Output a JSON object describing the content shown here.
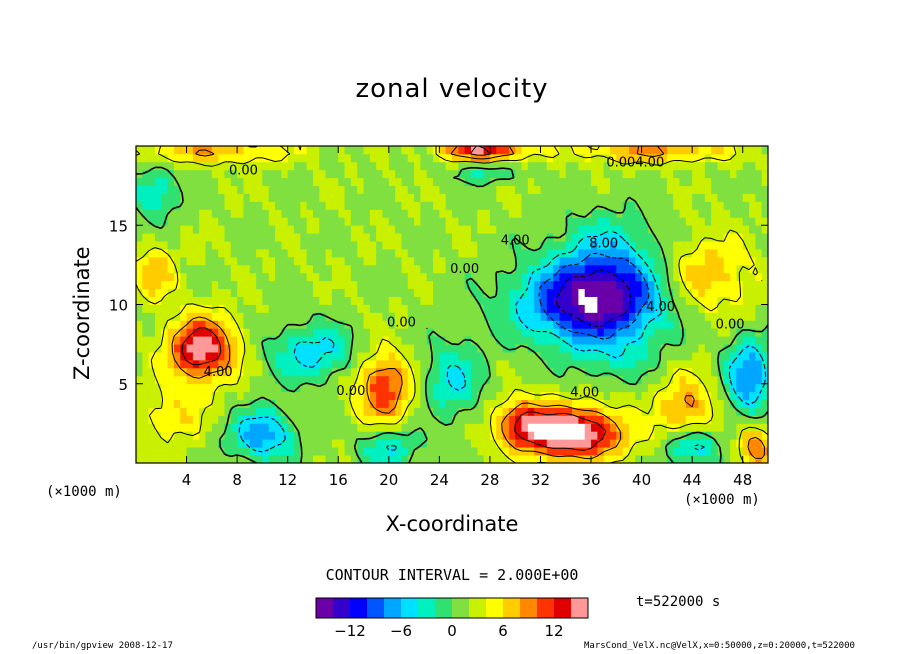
{
  "chart_data": {
    "type": "heatmap",
    "title": "zonal velocity",
    "xlabel": "X-coordinate",
    "ylabel": "Z-coordinate",
    "x_unit": "(×1000 m)",
    "z_unit": "(×1000 m)",
    "xlim": [
      0,
      50
    ],
    "ylim": [
      0,
      20
    ],
    "x_ticks": [
      4,
      8,
      12,
      16,
      20,
      24,
      28,
      32,
      36,
      40,
      44,
      48
    ],
    "y_ticks": [
      5,
      10,
      15
    ],
    "contour_interval_text": "CONTOUR INTERVAL = 2.000E+00",
    "colorbar": {
      "min": -16,
      "max": 16,
      "ticks": [
        -12,
        -6,
        0,
        6,
        12
      ]
    },
    "contour_labels": [
      {
        "text": "0.00",
        "x": 8.5,
        "z": 18.2
      },
      {
        "text": "0.004.00",
        "x": 39.5,
        "z": 18.7
      },
      {
        "text": "4.00",
        "x": 30.0,
        "z": 13.8
      },
      {
        "text": "8.00",
        "x": 37.0,
        "z": 13.6
      },
      {
        "text": "0.00",
        "x": 26.0,
        "z": 12.0
      },
      {
        "text": "0.00",
        "x": 21.0,
        "z": 8.6
      },
      {
        "text": "4.00",
        "x": 41.5,
        "z": 9.6
      },
      {
        "text": "0.00",
        "x": 47.0,
        "z": 8.5
      },
      {
        "text": "4.00",
        "x": 6.5,
        "z": 5.5
      },
      {
        "text": "0.00",
        "x": 17.0,
        "z": 4.3
      },
      {
        "text": "4.00",
        "x": 35.5,
        "z": 4.2
      }
    ],
    "features": [
      {
        "kind": "min",
        "x": 36.0,
        "z": 10.1,
        "value": -16,
        "sx": 5.6,
        "sz": 2.6
      },
      {
        "kind": "min",
        "x": 37.5,
        "z": 12.8,
        "value": -6,
        "sx": 4.0,
        "sz": 3.0
      },
      {
        "kind": "max",
        "x": 34.5,
        "z": 1.9,
        "value": 16,
        "sx": 4.0,
        "sz": 1.6
      },
      {
        "kind": "max",
        "x": 30.5,
        "z": 2.6,
        "value": 8,
        "sx": 2.0,
        "sz": 1.5
      },
      {
        "kind": "max",
        "x": 5.2,
        "z": 7.2,
        "value": 14,
        "sx": 2.6,
        "sz": 2.0
      },
      {
        "kind": "max",
        "x": 19.6,
        "z": 4.8,
        "value": 10,
        "sx": 2.2,
        "sz": 2.2
      },
      {
        "kind": "max",
        "x": 45.0,
        "z": 11.8,
        "value": 6,
        "sx": 3.6,
        "sz": 2.4
      },
      {
        "kind": "max",
        "x": 1.5,
        "z": 12.0,
        "value": 6,
        "sx": 1.6,
        "sz": 1.6
      },
      {
        "kind": "max",
        "x": 43.5,
        "z": 3.5,
        "value": 7,
        "sx": 2.2,
        "sz": 2.0
      },
      {
        "kind": "max",
        "x": 3.0,
        "z": 3.0,
        "value": 4,
        "sx": 2.6,
        "sz": 1.8
      },
      {
        "kind": "max",
        "x": 49.0,
        "z": 1.0,
        "value": 8,
        "sx": 1.4,
        "sz": 1.4
      },
      {
        "kind": "max",
        "x": 27.5,
        "z": 19.7,
        "value": 12,
        "sx": 3.2,
        "sz": 0.6
      },
      {
        "kind": "max",
        "x": 41.0,
        "z": 19.7,
        "value": 7,
        "sx": 6.0,
        "sz": 0.7
      },
      {
        "kind": "max",
        "x": 6.0,
        "z": 19.6,
        "value": 6,
        "sx": 6.0,
        "sz": 0.7
      },
      {
        "kind": "min",
        "x": 27.5,
        "z": 18.2,
        "value": -4,
        "sx": 2.8,
        "sz": 0.6
      },
      {
        "kind": "min",
        "x": 14.0,
        "z": 7.0,
        "value": -7,
        "sx": 3.4,
        "sz": 1.8
      },
      {
        "kind": "min",
        "x": 10.0,
        "z": 1.8,
        "value": -9,
        "sx": 2.6,
        "sz": 1.6
      },
      {
        "kind": "min",
        "x": 25.0,
        "z": 5.2,
        "value": -6,
        "sx": 2.4,
        "sz": 2.4
      },
      {
        "kind": "min",
        "x": 48.5,
        "z": 5.5,
        "value": -10,
        "sx": 1.8,
        "sz": 2.4
      },
      {
        "kind": "min",
        "x": 1.5,
        "z": 17.0,
        "value": -6,
        "sx": 1.8,
        "sz": 1.6
      },
      {
        "kind": "min",
        "x": 20.0,
        "z": 1.0,
        "value": -6,
        "sx": 2.4,
        "sz": 1.2
      },
      {
        "kind": "min",
        "x": 44.0,
        "z": 1.0,
        "value": -8,
        "sx": 2.0,
        "sz": 1.2
      },
      {
        "kind": "min",
        "x": 38.0,
        "z": 6.5,
        "value": -3,
        "sx": 3.0,
        "sz": 1.5
      }
    ],
    "background_value": 1.8
  },
  "time_text": "t=522000 s",
  "footer_left": "/usr/bin/gpview   2008-12-17",
  "footer_right": "MarsCond_VelX.nc@VelX,x=0:50000,z=0:20000,t=522000",
  "colors": {
    "palette": [
      "#6a00a8",
      "#3300cc",
      "#0000ff",
      "#0055ff",
      "#00a6ff",
      "#00e0ff",
      "#00f0c0",
      "#30e070",
      "#80e040",
      "#c8f000",
      "#ffff00",
      "#ffcc00",
      "#ff8800",
      "#ff3300",
      "#e00000",
      "#ff9999"
    ]
  }
}
